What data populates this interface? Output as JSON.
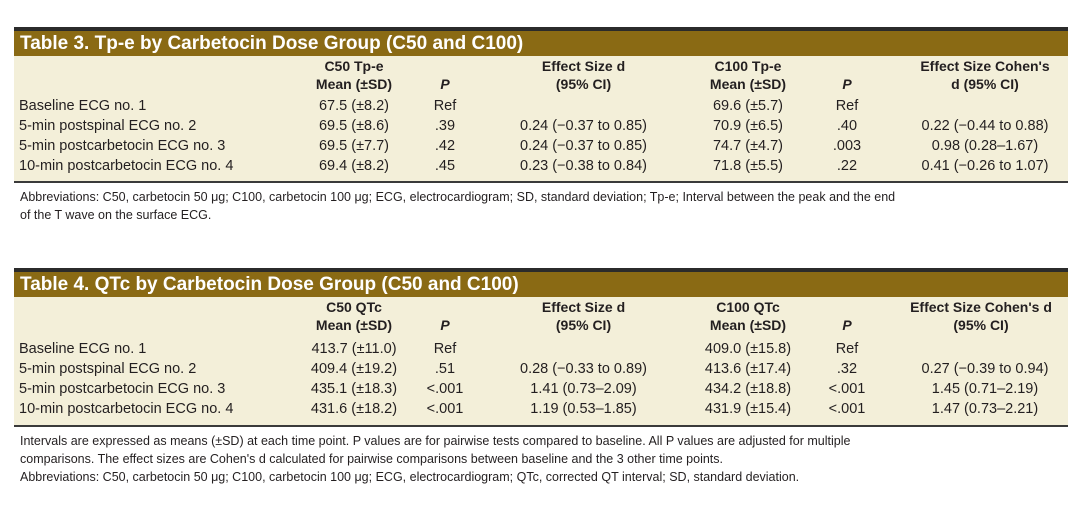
{
  "table3": {
    "title": "Table 3.  Tp-e by Carbetocin Dose Group (C50 and C100)",
    "headers": {
      "c50_mean_l1": "C50 Tp-e",
      "c50_mean_l2": "Mean (±SD)",
      "p1": "P",
      "es1_l1": "Effect Size d",
      "es1_l2": "(95% CI)",
      "c100_mean_l1": "C100 Tp-e",
      "c100_mean_l2": "Mean (±SD)",
      "p2": "P",
      "es2_l1": "Effect Size Cohen's",
      "es2_l2": "d (95% CI)"
    },
    "rows": [
      {
        "label": "Baseline ECG no. 1",
        "c50": "67.5 (±8.2)",
        "p1": "Ref",
        "es1": "",
        "c100": "69.6 (±5.7)",
        "p2": "Ref",
        "es2": ""
      },
      {
        "label": "5-min postspinal ECG no. 2",
        "c50": "69.5 (±8.6)",
        "p1": ".39",
        "es1": "0.24 (−0.37 to 0.85)",
        "c100": "70.9 (±6.5)",
        "p2": ".40",
        "es2": "0.22 (−0.44 to 0.88)"
      },
      {
        "label": "5-min postcarbetocin ECG no. 3",
        "c50": "69.5 (±7.7)",
        "p1": ".42",
        "es1": "0.24 (−0.37 to 0.85)",
        "c100": "74.7 (±4.7)",
        "p2": ".003",
        "es2": "0.98 (0.28–1.67)"
      },
      {
        "label": "10-min postcarbetocin ECG no. 4",
        "c50": "69.4 (±8.2)",
        "p1": ".45",
        "es1": "0.23 (−0.38 to 0.84)",
        "c100": "71.8 (±5.5)",
        "p2": ".22",
        "es2": "0.41 (−0.26 to 1.07)"
      }
    ],
    "abbrev_line1": "Abbreviations: C50, carbetocin 50 μg; C100, carbetocin 100 μg; ECG, electrocardiogram; SD, standard deviation; Tp-e; Interval between the peak and the end",
    "abbrev_line2": "of the T wave on the surface ECG."
  },
  "table4": {
    "title": "Table 4.  QTc by Carbetocin Dose Group (C50 and C100)",
    "headers": {
      "c50_mean_l1": "C50 QTc",
      "c50_mean_l2": "Mean (±SD)",
      "p1": "P",
      "es1_l1": "Effect Size d",
      "es1_l2": "(95% CI)",
      "c100_mean_l1": "C100 QTc",
      "c100_mean_l2": "Mean (±SD)",
      "p2": "P",
      "es2_l1": "Effect Size Cohen's d",
      "es2_l2": "(95% CI)"
    },
    "rows": [
      {
        "label": "Baseline ECG no. 1",
        "c50": "413.7 (±11.0)",
        "p1": "Ref",
        "es1": "",
        "c100": "409.0 (±15.8)",
        "p2": "Ref",
        "es2": ""
      },
      {
        "label": "5-min postspinal ECG no. 2",
        "c50": "409.4 (±19.2)",
        "p1": ".51",
        "es1": "0.28 (−0.33 to 0.89)",
        "c100": "413.6 (±17.4)",
        "p2": ".32",
        "es2": "0.27 (−0.39 to 0.94)"
      },
      {
        "label": "5-min postcarbetocin ECG no. 3",
        "c50": "435.1 (±18.3)",
        "p1": "<.001",
        "es1": "1.41 (0.73–2.09)",
        "c100": "434.2 (±18.8)",
        "p2": "<.001",
        "es2": "1.45 (0.71–2.19)"
      },
      {
        "label": "10-min postcarbetocin ECG no. 4",
        "c50": "431.6 (±18.2)",
        "p1": "<.001",
        "es1": "1.19 (0.53–1.85)",
        "c100": "431.9 (±15.4)",
        "p2": "<.001",
        "es2": "1.47 (0.73–2.21)"
      }
    ],
    "note_line1": "Intervals are expressed as means (±SD) at each time point. P values are for pairwise tests compared to baseline. All P values are adjusted for multiple",
    "note_line2": "comparisons. The effect sizes are Cohen's d calculated for pairwise comparisons between baseline and the 3 other time points.",
    "abbrev_line1": "Abbreviations: C50, carbetocin 50 μg; C100, carbetocin 100 μg; ECG, electrocardiogram; QTc, corrected QT interval; SD, standard deviation."
  }
}
